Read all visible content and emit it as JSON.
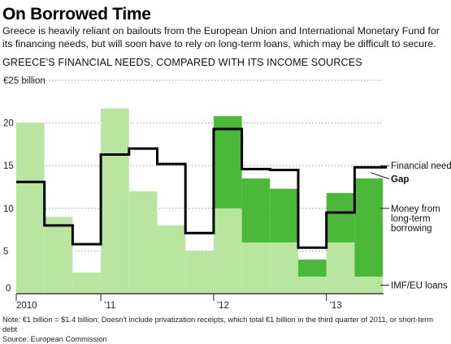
{
  "title": "On Borrowed Time",
  "subtitle": "Greece is heavily reliant on bailouts from the European Union and International Monetary Fund for its financing needs, but will soon have to rely on long-term loans, which may be difficult to secure.",
  "chart_title": "GREECE'S FINANCIAL NEEDS, COMPARED WITH ITS INCOME SOURCES",
  "note": "Note: €1 billion = $1.4 billion; Doesn't include privatization receipts, which total €1 billion in the third quarter of 2011, or short-term debt",
  "source": "Source: European Commission",
  "chart_data": {
    "type": "bar",
    "unit_label": "€25 billion",
    "ylim": [
      0,
      25
    ],
    "yticks": [
      0,
      5,
      10,
      15,
      20
    ],
    "ytick_labels": [
      "0",
      "5",
      "10",
      "15",
      "20"
    ],
    "x_labels": [
      "2010",
      "'11",
      "'12",
      "'13"
    ],
    "colors": {
      "imf_eu": "#b8e6a0",
      "long_term": "#4cb83a",
      "gap": "#ffffff",
      "needs_line": "#000000",
      "grid": "#999999"
    },
    "periods": [
      {
        "period": "2010 Q2",
        "imf_eu": 20,
        "long_term": 0,
        "needs": 13.1
      },
      {
        "period": "2010 Q3",
        "imf_eu": 9,
        "long_term": 0,
        "needs": 8.0
      },
      {
        "period": "2010 Q4",
        "imf_eu": 2.5,
        "long_term": 0,
        "needs": 5.8
      },
      {
        "period": "2011 Q1",
        "imf_eu": 21.7,
        "long_term": 0,
        "needs": 16.3
      },
      {
        "period": "2011 Q2",
        "imf_eu": 12,
        "long_term": 0,
        "needs": 17.0
      },
      {
        "period": "2011 Q3",
        "imf_eu": 8,
        "long_term": 0,
        "needs": 15.2
      },
      {
        "period": "2011 Q4",
        "imf_eu": 5,
        "long_term": 0,
        "needs": 7.1
      },
      {
        "period": "2012 Q1",
        "imf_eu": 10,
        "long_term": 10.8,
        "needs": 19.3
      },
      {
        "period": "2012 Q2",
        "imf_eu": 6,
        "long_term": 7.5,
        "needs": 14.6
      },
      {
        "period": "2012 Q3",
        "imf_eu": 6,
        "long_term": 6.3,
        "needs": 14.5
      },
      {
        "period": "2012 Q4",
        "imf_eu": 2,
        "long_term": 2,
        "needs": 5.4
      },
      {
        "period": "2013 Q1",
        "imf_eu": 6,
        "long_term": 5.8,
        "needs": 9.5
      },
      {
        "period": "2013 Q2",
        "imf_eu": 2,
        "long_term": 11.5,
        "needs": 14.8
      }
    ],
    "legend": {
      "needs": "Financial needs",
      "gap": "Gap",
      "long_term": "Money from long-term borrowing",
      "imf_eu": "IMF/EU loans"
    }
  }
}
